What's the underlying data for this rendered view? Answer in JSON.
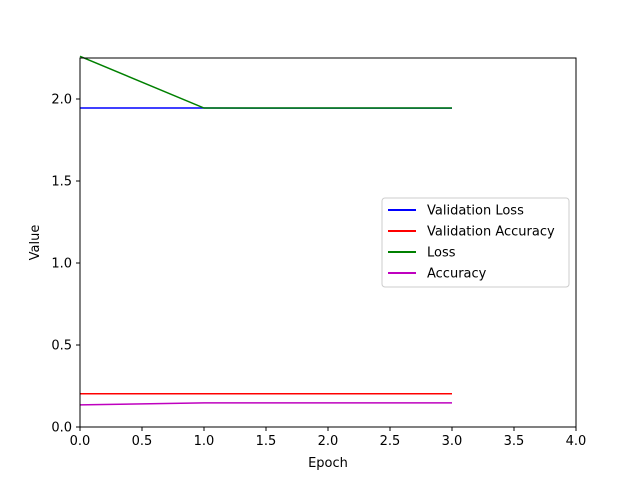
{
  "chart_data": {
    "type": "line",
    "title": "",
    "xlabel": "Epoch",
    "ylabel": "Value",
    "xlim": [
      0,
      4
    ],
    "ylim": [
      0,
      2.25
    ],
    "xticks": [
      "0.0",
      "0.5",
      "1.0",
      "1.5",
      "2.0",
      "2.5",
      "3.0",
      "3.5",
      "4.0"
    ],
    "yticks": [
      "0.0",
      "0.5",
      "1.0",
      "1.5",
      "2.0"
    ],
    "grid": false,
    "legend_position": "center-right",
    "series": [
      {
        "name": "Validation Loss",
        "color": "#0000ff",
        "x": [
          0,
          1,
          2,
          3
        ],
        "y": [
          1.945,
          1.945,
          1.944,
          1.944
        ]
      },
      {
        "name": "Validation Accuracy",
        "color": "#ff0000",
        "x": [
          0,
          1,
          2,
          3
        ],
        "y": [
          0.203,
          0.203,
          0.203,
          0.203
        ]
      },
      {
        "name": "Loss",
        "color": "#008000",
        "x": [
          0,
          1,
          2,
          3
        ],
        "y": [
          2.26,
          1.945,
          1.945,
          1.945
        ]
      },
      {
        "name": "Accuracy",
        "color": "#bf00bf",
        "x": [
          0,
          1,
          2,
          3
        ],
        "y": [
          0.135,
          0.147,
          0.147,
          0.147
        ]
      }
    ]
  }
}
